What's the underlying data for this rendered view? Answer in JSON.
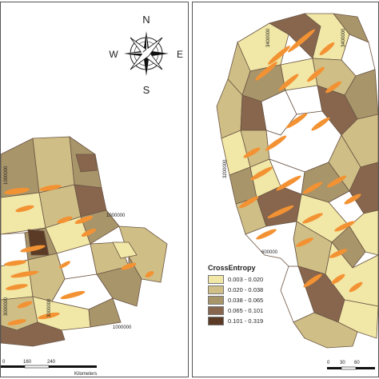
{
  "colors": {
    "class1": "#f1e7a6",
    "class2": "#cfbf86",
    "class3": "#a8956a",
    "class4": "#87664d",
    "class5": "#5b3b26",
    "empty": "#ffffff",
    "streak": "#f39233",
    "border": "#6b5544"
  },
  "compass": {
    "n": "N",
    "s": "S",
    "e": "E",
    "w": "W"
  },
  "left_map": {
    "coord_labels": [
      "1000000",
      "1000000",
      "3000000",
      "1000000",
      "3000000"
    ],
    "scale": {
      "labels": [
        "0",
        "160",
        "240"
      ],
      "unit": "Kilometers"
    }
  },
  "right_map": {
    "coord_labels": [
      "3400000",
      "3400000",
      "3200000",
      "600000"
    ],
    "scale": {
      "labels": [
        "0",
        "30",
        "60"
      ]
    }
  },
  "legend": {
    "title": "CrossEntropy",
    "items": [
      {
        "label": "0.003 - 0.020",
        "color": "#f1e7a6"
      },
      {
        "label": "0.020 - 0.038",
        "color": "#cfbf86"
      },
      {
        "label": "0.038 - 0.065",
        "color": "#a8956a"
      },
      {
        "label": "0.065 - 0.101",
        "color": "#87664d"
      },
      {
        "label": "0.101 - 0.319",
        "color": "#5b3b26"
      }
    ]
  }
}
